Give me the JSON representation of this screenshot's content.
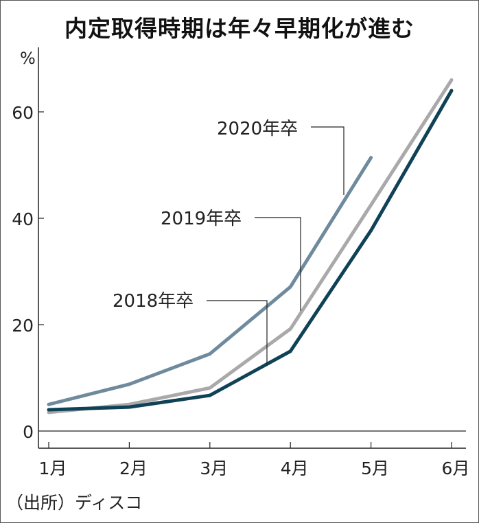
{
  "chart_data": {
    "type": "line",
    "title": "内定取得時期は年々早期化が進む",
    "ylabel": "%",
    "xlabel": "",
    "categories": [
      "1月",
      "2月",
      "3月",
      "4月",
      "5月",
      "6月"
    ],
    "yticks": [
      "0",
      "20",
      "40",
      "60"
    ],
    "ylim": [
      0,
      70
    ],
    "grid": false,
    "series": [
      {
        "name": "2020年卒",
        "color": "#6e8a9c",
        "values": [
          5.0,
          8.8,
          14.5,
          27.1,
          51.4,
          null
        ]
      },
      {
        "name": "2019年卒",
        "color": "#a9a9ac",
        "values": [
          3.5,
          5.0,
          8.1,
          19.2,
          42.5,
          66.0
        ]
      },
      {
        "name": "2018年卒",
        "color": "#0f4257",
        "values": [
          4.0,
          4.5,
          6.7,
          15.0,
          37.7,
          64.0
        ]
      }
    ],
    "source": "（出所）ディスコ"
  }
}
